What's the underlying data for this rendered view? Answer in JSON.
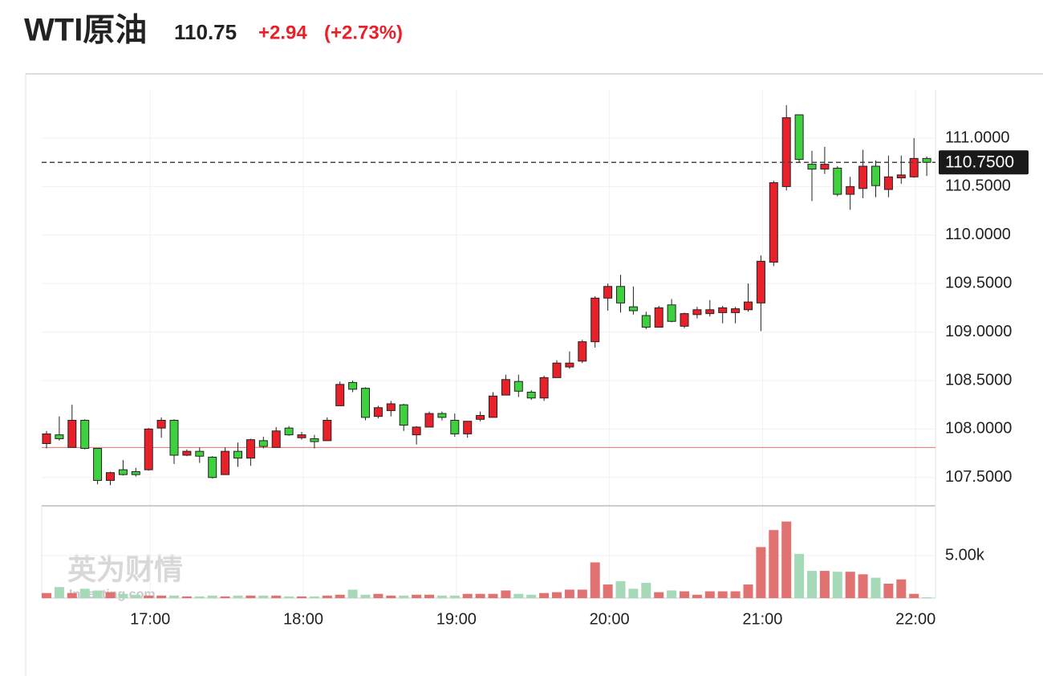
{
  "header": {
    "name": "WTI原油",
    "price": "110.75",
    "change": "+2.94",
    "change_pct": "(+2.73%)"
  },
  "watermark": {
    "brand": "英为财情",
    "site": "Investing.com"
  },
  "chart_data": {
    "type": "candlestick",
    "up_color": "#e8202a",
    "down_color": "#3fd03f",
    "categories": [
      null,
      null,
      null,
      null,
      null,
      null,
      null,
      null,
      "17:00",
      null,
      null,
      null,
      null,
      null,
      null,
      null,
      null,
      null,
      null,
      null,
      "18:00",
      null,
      null,
      null,
      null,
      null,
      null,
      null,
      null,
      null,
      null,
      null,
      "19:00",
      null,
      null,
      null,
      null,
      null,
      null,
      null,
      null,
      null,
      null,
      null,
      "20:00",
      null,
      null,
      null,
      null,
      null,
      null,
      null,
      null,
      null,
      null,
      null,
      "21:00",
      null,
      null,
      null,
      null,
      null,
      null,
      null,
      null,
      null,
      null,
      null,
      "22:00",
      null
    ],
    "open": [
      107.85,
      107.94,
      107.81,
      108.09,
      107.8,
      107.47,
      107.58,
      107.56,
      107.58,
      108.01,
      108.09,
      107.73,
      107.77,
      107.71,
      107.53,
      107.77,
      107.7,
      107.88,
      107.81,
      108.01,
      107.91,
      107.9,
      107.88,
      108.24,
      108.48,
      108.42,
      108.13,
      108.19,
      108.25,
      107.94,
      108.02,
      108.16,
      108.09,
      107.95,
      108.1,
      108.12,
      108.35,
      108.49,
      108.38,
      108.32,
      108.53,
      108.64,
      108.7,
      108.9,
      109.35,
      109.47,
      109.26,
      109.17,
      109.05,
      109.28,
      109.06,
      109.18,
      109.19,
      109.2,
      109.2,
      109.23,
      109.3,
      109.72,
      110.5,
      111.24,
      110.73,
      110.68,
      110.69,
      110.42,
      110.48,
      110.71,
      110.47,
      110.59,
      110.6,
      110.79
    ],
    "high": [
      107.98,
      108.13,
      108.25,
      108.1,
      107.8,
      107.56,
      107.68,
      107.6,
      108.01,
      108.12,
      108.1,
      107.79,
      107.81,
      107.72,
      107.81,
      107.86,
      107.9,
      107.92,
      108.02,
      108.03,
      107.97,
      107.94,
      108.12,
      108.49,
      108.5,
      108.43,
      108.24,
      108.29,
      108.26,
      108.03,
      108.18,
      108.18,
      108.16,
      108.08,
      108.18,
      108.38,
      108.56,
      108.56,
      108.4,
      108.55,
      108.71,
      108.8,
      108.92,
      109.37,
      109.5,
      109.59,
      109.47,
      109.21,
      109.27,
      109.34,
      109.2,
      109.26,
      109.33,
      109.27,
      109.26,
      109.5,
      109.79,
      110.56,
      111.34,
      111.24,
      110.87,
      110.91,
      110.71,
      110.6,
      110.88,
      110.77,
      110.82,
      110.82,
      111.0,
      110.81
    ],
    "low": [
      107.8,
      107.88,
      107.81,
      107.79,
      107.43,
      107.42,
      107.52,
      107.51,
      107.57,
      107.91,
      107.64,
      107.72,
      107.65,
      107.49,
      107.53,
      107.61,
      107.62,
      107.8,
      107.81,
      107.93,
      107.89,
      107.8,
      107.88,
      108.24,
      108.38,
      108.09,
      108.11,
      108.13,
      107.98,
      107.84,
      108.02,
      108.09,
      107.92,
      107.91,
      108.08,
      108.12,
      108.35,
      108.33,
      108.3,
      108.29,
      108.53,
      108.62,
      108.68,
      108.84,
      109.22,
      109.2,
      109.18,
      109.03,
      109.05,
      109.1,
      109.04,
      109.14,
      109.16,
      109.09,
      109.09,
      109.21,
      109.01,
      109.68,
      110.46,
      110.75,
      110.35,
      110.63,
      110.4,
      110.26,
      110.38,
      110.39,
      110.39,
      110.53,
      110.59,
      110.61
    ],
    "close": [
      107.95,
      107.9,
      108.09,
      107.8,
      107.47,
      107.55,
      107.53,
      107.53,
      108.0,
      108.09,
      107.73,
      107.77,
      107.72,
      107.5,
      107.77,
      107.7,
      107.89,
      107.82,
      107.98,
      107.94,
      107.94,
      107.87,
      108.09,
      108.46,
      108.41,
      108.12,
      108.22,
      108.26,
      108.04,
      108.02,
      108.16,
      108.12,
      107.95,
      108.08,
      108.14,
      108.34,
      108.51,
      108.39,
      108.32,
      108.53,
      108.68,
      108.68,
      108.9,
      109.35,
      109.47,
      109.3,
      109.22,
      109.05,
      109.25,
      109.11,
      109.19,
      109.23,
      109.23,
      109.25,
      109.24,
      109.31,
      109.73,
      110.54,
      111.21,
      110.78,
      110.68,
      110.73,
      110.42,
      110.5,
      110.71,
      110.51,
      110.6,
      110.62,
      110.79,
      110.75
    ],
    "ylim": [
      107.2,
      111.5
    ],
    "yticks": [
      {
        "value": 107.5,
        "label": "107.5000"
      },
      {
        "value": 108,
        "label": "108.0000"
      },
      {
        "value": 108.5,
        "label": "108.5000"
      },
      {
        "value": 109,
        "label": "109.0000"
      },
      {
        "value": 109.5,
        "label": "109.5000"
      },
      {
        "value": 110,
        "label": "110.0000"
      },
      {
        "value": 110.5,
        "label": "110.5000"
      },
      {
        "value": 111,
        "label": "111.0000"
      }
    ],
    "last_price": {
      "value": 110.75,
      "label": "110.7500"
    },
    "prev_close": 107.81,
    "grid": true,
    "volume": {
      "up_color": "#e07272",
      "down_color": "#a6d9b8",
      "values": [
        600,
        1300,
        600,
        1100,
        900,
        700,
        500,
        400,
        300,
        300,
        300,
        200,
        200,
        300,
        200,
        300,
        300,
        300,
        300,
        200,
        200,
        200,
        300,
        400,
        1000,
        400,
        500,
        300,
        300,
        400,
        400,
        300,
        300,
        500,
        500,
        500,
        900,
        500,
        400,
        600,
        700,
        1000,
        1000,
        4200,
        1600,
        2000,
        1100,
        1800,
        700,
        900,
        800,
        400,
        800,
        800,
        800,
        1600,
        6000,
        8000,
        9000,
        5200,
        3200,
        3200,
        3100,
        3100,
        2800,
        2400,
        1700,
        2200,
        500,
        100
      ],
      "ylim": [
        0,
        10000
      ],
      "yticks": [
        {
          "value": 5000,
          "label": "5.00k"
        }
      ]
    }
  }
}
